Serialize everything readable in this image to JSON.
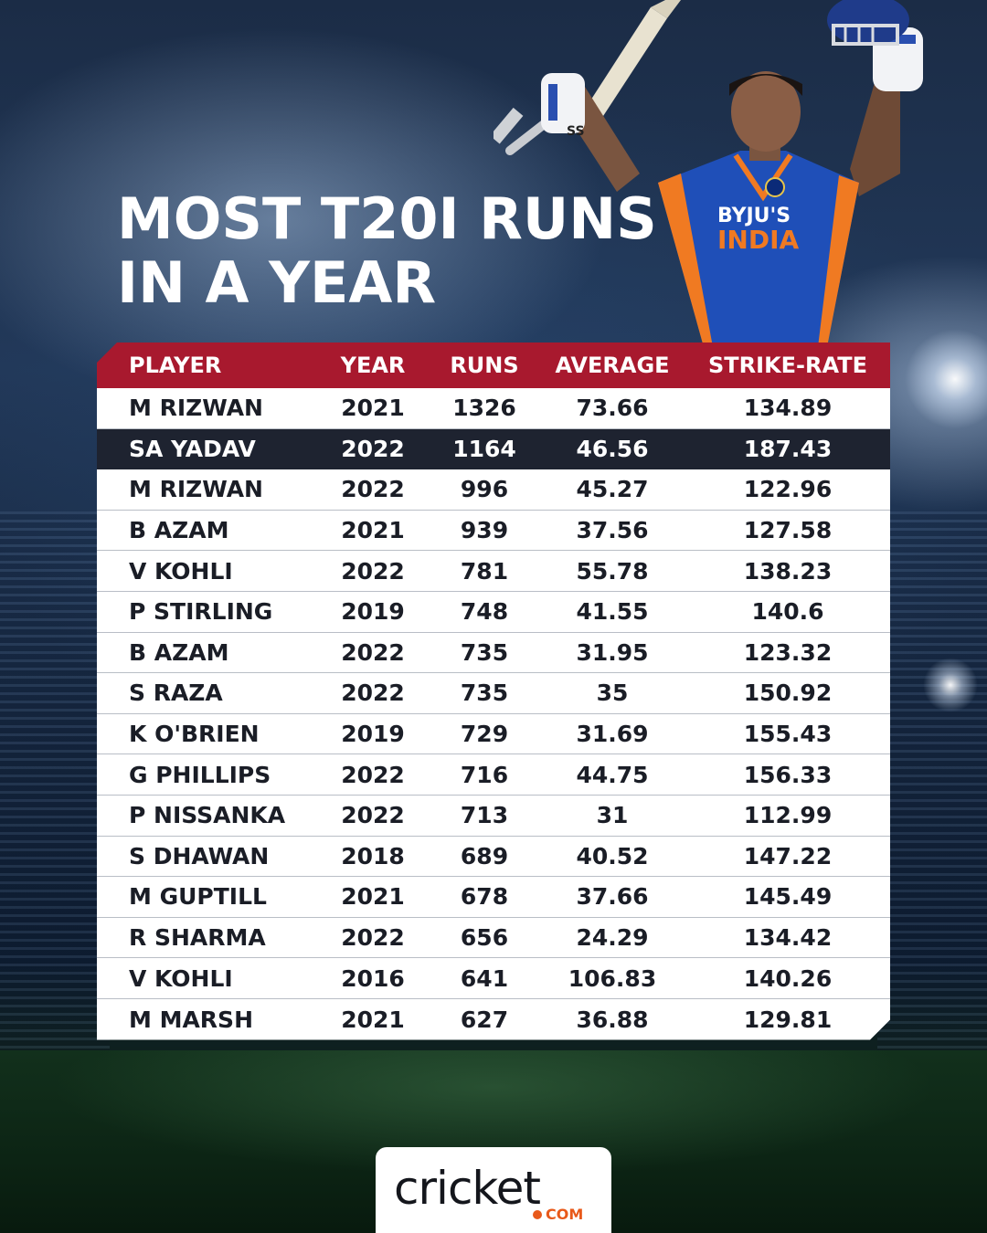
{
  "title": {
    "line1": "MOST T20I RUNS",
    "line2": "IN A YEAR"
  },
  "player_jersey": {
    "sponsor": "BYJU'S",
    "team": "INDIA",
    "glove_text": "SS"
  },
  "table": {
    "headers": [
      "PLAYER",
      "YEAR",
      "RUNS",
      "AVERAGE",
      "STRIKE-RATE"
    ],
    "highlight_row": 1,
    "rows": [
      [
        "M RIZWAN",
        "2021",
        "1326",
        "73.66",
        "134.89"
      ],
      [
        "SA YADAV",
        "2022",
        "1164",
        "46.56",
        "187.43"
      ],
      [
        "M RIZWAN",
        "2022",
        "996",
        "45.27",
        "122.96"
      ],
      [
        "B AZAM",
        "2021",
        "939",
        "37.56",
        "127.58"
      ],
      [
        "V KOHLI",
        "2022",
        "781",
        "55.78",
        "138.23"
      ],
      [
        "P STIRLING",
        "2019",
        "748",
        "41.55",
        "140.6"
      ],
      [
        "B AZAM",
        "2022",
        "735",
        "31.95",
        "123.32"
      ],
      [
        "S RAZA",
        "2022",
        "735",
        "35",
        "150.92"
      ],
      [
        "K O'BRIEN",
        "2019",
        "729",
        "31.69",
        "155.43"
      ],
      [
        "G PHILLIPS",
        "2022",
        "716",
        "44.75",
        "156.33"
      ],
      [
        "P NISSANKA",
        "2022",
        "713",
        "31",
        "112.99"
      ],
      [
        "S DHAWAN",
        "2018",
        "689",
        "40.52",
        "147.22"
      ],
      [
        "M GUPTILL",
        "2021",
        "678",
        "37.66",
        "145.49"
      ],
      [
        "R SHARMA",
        "2022",
        "656",
        "24.29",
        "134.42"
      ],
      [
        "V KOHLI",
        "2016",
        "641",
        "106.83",
        "140.26"
      ],
      [
        "M MARSH",
        "2021",
        "627",
        "36.88",
        "129.81"
      ]
    ]
  },
  "logo": {
    "word": "cricket",
    "suffix": "COM"
  },
  "colors": {
    "header_red": "#a8192e",
    "highlight_dark": "#1e2330",
    "logo_orange": "#e8591a",
    "jersey_blue": "#1f4fb8"
  }
}
